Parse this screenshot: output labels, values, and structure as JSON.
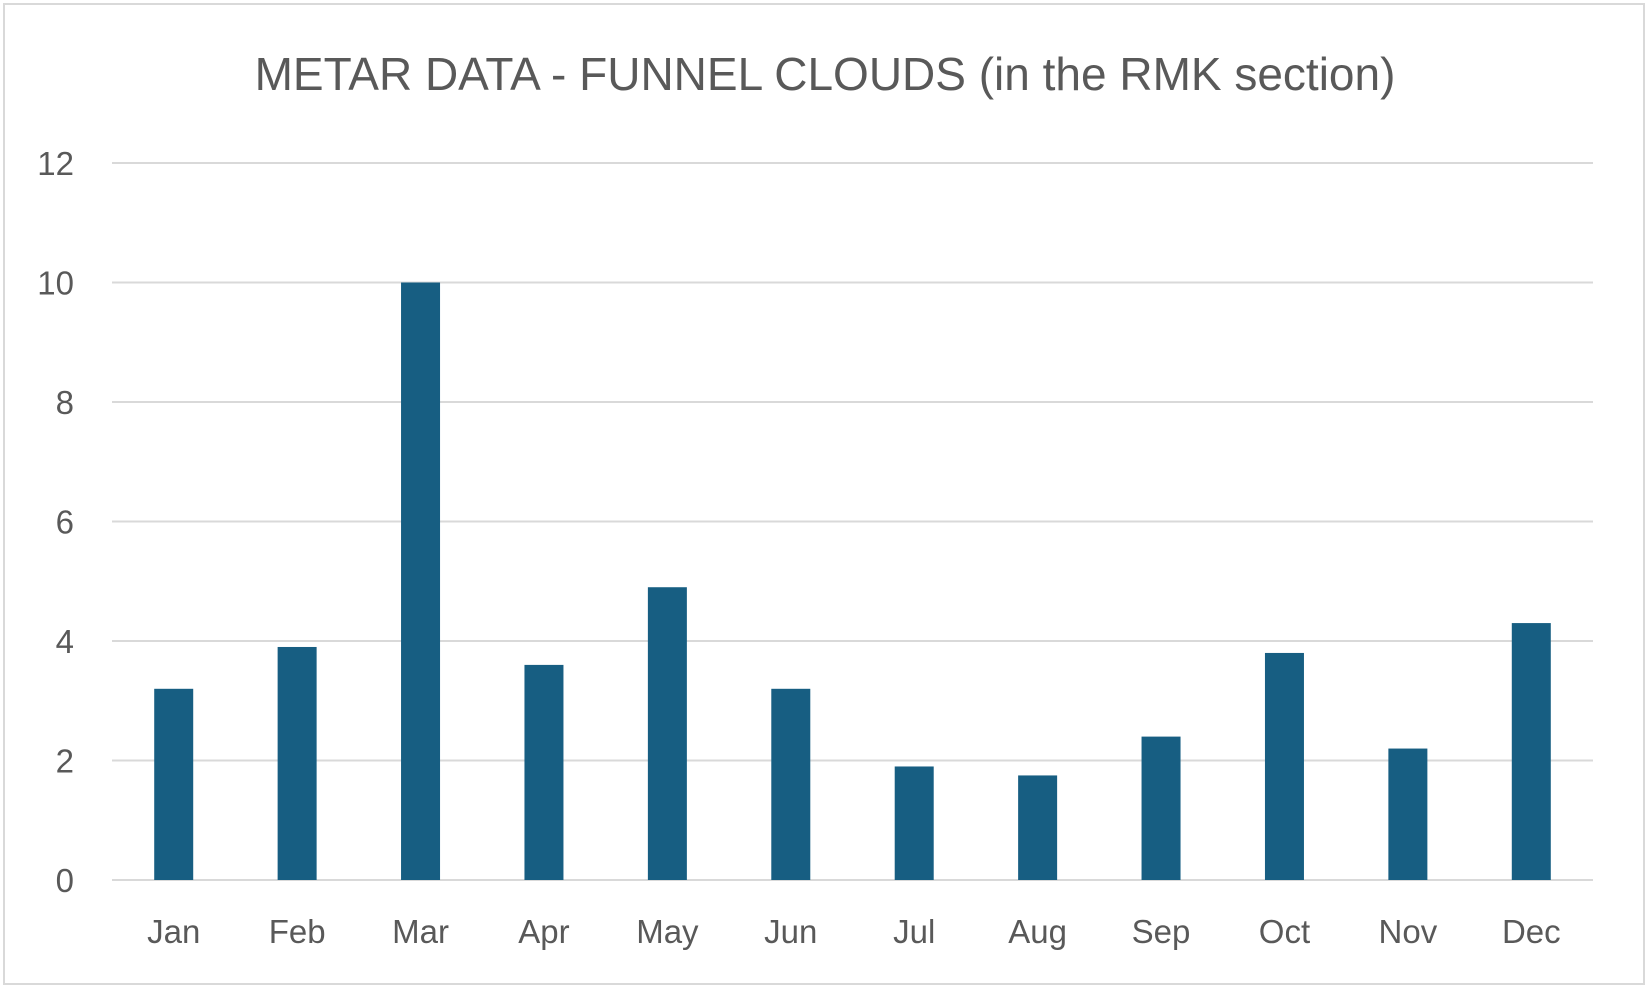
{
  "chart_data": {
    "type": "bar",
    "title": "METAR DATA - FUNNEL CLOUDS (in the RMK section)",
    "xlabel": "",
    "ylabel": "",
    "categories": [
      "Jan",
      "Feb",
      "Mar",
      "Apr",
      "May",
      "Jun",
      "Jul",
      "Aug",
      "Sep",
      "Oct",
      "Nov",
      "Dec"
    ],
    "values": [
      3.2,
      3.9,
      10.0,
      3.6,
      4.9,
      3.2,
      1.9,
      1.75,
      2.4,
      3.8,
      2.2,
      4.3
    ],
    "ylim": [
      0,
      12
    ],
    "yticks": [
      "0",
      "2",
      "4",
      "6",
      "8",
      "10",
      "12"
    ],
    "grid": true,
    "legend": "none",
    "bar_color": "#175e82",
    "grid_color": "#d9d9d9",
    "text_color": "#595959"
  }
}
